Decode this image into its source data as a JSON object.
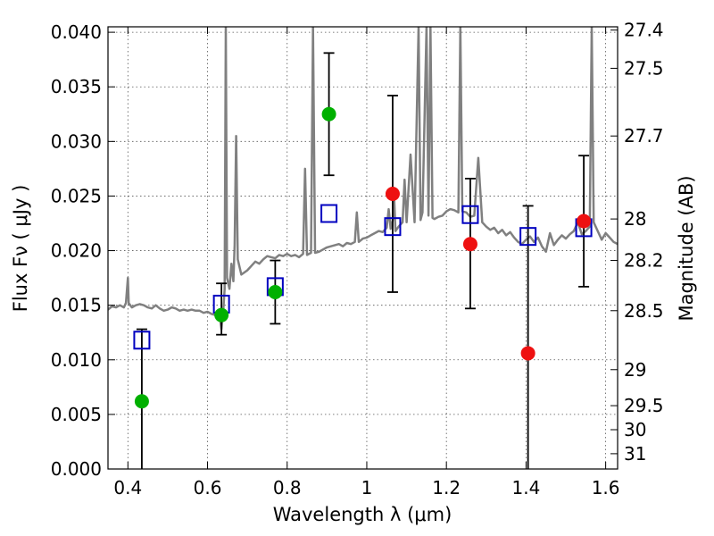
{
  "chart_data": {
    "type": "scatter",
    "title": "",
    "xlabel": "Wavelength  λ (μm)",
    "ylabel": "Flux  Fν  ( μJy )",
    "y2label": "Magnitude (AB)",
    "xlim": [
      0.35,
      1.63
    ],
    "ylim": [
      0.0,
      0.0405
    ],
    "grid": true,
    "x_ticks": [
      0.4,
      0.6,
      0.8,
      1.0,
      1.2,
      1.4,
      1.6
    ],
    "x_tick_labels": [
      "0.4",
      "0.6",
      "0.8",
      "1",
      "1.2",
      "1.4",
      "1.6"
    ],
    "y_ticks": [
      0.0,
      0.005,
      0.01,
      0.015,
      0.02,
      0.025,
      0.03,
      0.035,
      0.04
    ],
    "y_tick_labels": [
      "0.000",
      "0.005",
      "0.010",
      "0.015",
      "0.020",
      "0.025",
      "0.030",
      "0.035",
      "0.040"
    ],
    "y2_ticks": [
      {
        "label": "27.4",
        "flux": 0.0402
      },
      {
        "label": "27.5",
        "flux": 0.0367
      },
      {
        "label": "27.7",
        "flux": 0.0305
      },
      {
        "label": "28",
        "flux": 0.0229
      },
      {
        "label": "28.2",
        "flux": 0.0191
      },
      {
        "label": "28.5",
        "flux": 0.0145
      },
      {
        "label": "29",
        "flux": 0.0091
      },
      {
        "label": "29.5",
        "flux": 0.0058
      },
      {
        "label": "30",
        "flux": 0.0036
      },
      {
        "label": "31",
        "flux": 0.0014
      }
    ],
    "colors": {
      "spectrum": "#808080",
      "model_box": "#0000c0",
      "green_point": "#00b000",
      "red_point": "#ee1111",
      "error_bar": "#000000",
      "grid": "#555555"
    },
    "series": [
      {
        "marker": "circle",
        "color": "green",
        "points": [
          {
            "x": 0.435,
            "y": 0.0062,
            "yerr_low": 0.0062,
            "yerr_high": 0.0066
          },
          {
            "x": 0.635,
            "y": 0.0141,
            "yerr_low": 0.0018,
            "yerr_high": 0.0029
          },
          {
            "x": 0.77,
            "y": 0.0162,
            "yerr_low": 0.0029,
            "yerr_high": 0.0029
          },
          {
            "x": 0.905,
            "y": 0.0325,
            "yerr_low": 0.0056,
            "yerr_high": 0.0056
          }
        ]
      },
      {
        "marker": "circle",
        "color": "red",
        "points": [
          {
            "x": 1.065,
            "y": 0.0252,
            "yerr_low": 0.009,
            "yerr_high": 0.009
          },
          {
            "x": 1.26,
            "y": 0.0206,
            "yerr_low": 0.0059,
            "yerr_high": 0.006
          },
          {
            "x": 1.405,
            "y": 0.0106,
            "yerr_low": 0.0106,
            "yerr_high": 0.0135
          },
          {
            "x": 1.545,
            "y": 0.0227,
            "yerr_low": 0.006,
            "yerr_high": 0.006
          }
        ]
      },
      {
        "marker": "square",
        "color": "blue",
        "points": [
          {
            "x": 0.435,
            "y": 0.0118
          },
          {
            "x": 0.635,
            "y": 0.0151
          },
          {
            "x": 0.77,
            "y": 0.0167
          },
          {
            "x": 0.905,
            "y": 0.0234
          },
          {
            "x": 1.065,
            "y": 0.0222
          },
          {
            "x": 1.26,
            "y": 0.0233
          },
          {
            "x": 1.405,
            "y": 0.0213
          },
          {
            "x": 1.545,
            "y": 0.0221
          }
        ]
      },
      {
        "marker": "line",
        "color": "gray",
        "points": [
          [
            0.35,
            0.0146
          ],
          [
            0.36,
            0.0149
          ],
          [
            0.37,
            0.0148
          ],
          [
            0.38,
            0.015
          ],
          [
            0.39,
            0.0148
          ],
          [
            0.395,
            0.0152
          ],
          [
            0.4,
            0.0175
          ],
          [
            0.402,
            0.0152
          ],
          [
            0.41,
            0.0148
          ],
          [
            0.42,
            0.015
          ],
          [
            0.43,
            0.0151
          ],
          [
            0.44,
            0.015
          ],
          [
            0.45,
            0.0148
          ],
          [
            0.46,
            0.0147
          ],
          [
            0.47,
            0.015
          ],
          [
            0.48,
            0.0147
          ],
          [
            0.49,
            0.0145
          ],
          [
            0.5,
            0.0146
          ],
          [
            0.51,
            0.0148
          ],
          [
            0.52,
            0.0147
          ],
          [
            0.53,
            0.0145
          ],
          [
            0.54,
            0.0146
          ],
          [
            0.55,
            0.0145
          ],
          [
            0.56,
            0.0146
          ],
          [
            0.57,
            0.0145
          ],
          [
            0.58,
            0.0145
          ],
          [
            0.59,
            0.0143
          ],
          [
            0.6,
            0.0144
          ],
          [
            0.61,
            0.0142
          ],
          [
            0.62,
            0.0141
          ],
          [
            0.63,
            0.0142
          ],
          [
            0.635,
            0.0128
          ],
          [
            0.64,
            0.0148
          ],
          [
            0.643,
            0.0165
          ],
          [
            0.646,
            0.0405
          ],
          [
            0.649,
            0.0175
          ],
          [
            0.655,
            0.0165
          ],
          [
            0.66,
            0.0188
          ],
          [
            0.665,
            0.0172
          ],
          [
            0.668,
            0.0205
          ],
          [
            0.672,
            0.0305
          ],
          [
            0.676,
            0.0192
          ],
          [
            0.685,
            0.0178
          ],
          [
            0.7,
            0.0182
          ],
          [
            0.71,
            0.0186
          ],
          [
            0.72,
            0.019
          ],
          [
            0.73,
            0.0188
          ],
          [
            0.74,
            0.0192
          ],
          [
            0.75,
            0.0195
          ],
          [
            0.76,
            0.0194
          ],
          [
            0.77,
            0.0193
          ],
          [
            0.78,
            0.0196
          ],
          [
            0.79,
            0.0195
          ],
          [
            0.8,
            0.0197
          ],
          [
            0.81,
            0.0195
          ],
          [
            0.82,
            0.0196
          ],
          [
            0.83,
            0.0194
          ],
          [
            0.84,
            0.0197
          ],
          [
            0.845,
            0.0275
          ],
          [
            0.85,
            0.0196
          ],
          [
            0.86,
            0.0198
          ],
          [
            0.865,
            0.0405
          ],
          [
            0.87,
            0.0198
          ],
          [
            0.88,
            0.0199
          ],
          [
            0.89,
            0.0201
          ],
          [
            0.9,
            0.0203
          ],
          [
            0.91,
            0.0204
          ],
          [
            0.92,
            0.0205
          ],
          [
            0.93,
            0.0206
          ],
          [
            0.94,
            0.0204
          ],
          [
            0.95,
            0.0207
          ],
          [
            0.96,
            0.0206
          ],
          [
            0.97,
            0.0208
          ],
          [
            0.975,
            0.0235
          ],
          [
            0.98,
            0.0208
          ],
          [
            0.99,
            0.0211
          ],
          [
            1.0,
            0.0212
          ],
          [
            1.01,
            0.0214
          ],
          [
            1.02,
            0.0216
          ],
          [
            1.03,
            0.0218
          ],
          [
            1.04,
            0.0217
          ],
          [
            1.05,
            0.0221
          ],
          [
            1.055,
            0.0238
          ],
          [
            1.06,
            0.022
          ],
          [
            1.065,
            0.0228
          ],
          [
            1.068,
            0.0255
          ],
          [
            1.072,
            0.0218
          ],
          [
            1.08,
            0.0222
          ],
          [
            1.09,
            0.0226
          ],
          [
            1.095,
            0.0265
          ],
          [
            1.1,
            0.0226
          ],
          [
            1.11,
            0.0288
          ],
          [
            1.12,
            0.0226
          ],
          [
            1.13,
            0.0405
          ],
          [
            1.135,
            0.0228
          ],
          [
            1.14,
            0.0235
          ],
          [
            1.15,
            0.0405
          ],
          [
            1.155,
            0.0232
          ],
          [
            1.16,
            0.0405
          ],
          [
            1.165,
            0.023
          ],
          [
            1.17,
            0.0229
          ],
          [
            1.18,
            0.0231
          ],
          [
            1.19,
            0.0232
          ],
          [
            1.2,
            0.0236
          ],
          [
            1.21,
            0.0238
          ],
          [
            1.22,
            0.0237
          ],
          [
            1.23,
            0.0235
          ],
          [
            1.235,
            0.0405
          ],
          [
            1.24,
            0.0236
          ],
          [
            1.25,
            0.0235
          ],
          [
            1.26,
            0.0231
          ],
          [
            1.27,
            0.0232
          ],
          [
            1.28,
            0.0285
          ],
          [
            1.29,
            0.0226
          ],
          [
            1.3,
            0.0222
          ],
          [
            1.31,
            0.0219
          ],
          [
            1.32,
            0.0221
          ],
          [
            1.33,
            0.0216
          ],
          [
            1.34,
            0.0219
          ],
          [
            1.35,
            0.0214
          ],
          [
            1.36,
            0.0217
          ],
          [
            1.37,
            0.0212
          ],
          [
            1.38,
            0.0208
          ],
          [
            1.39,
            0.0206
          ],
          [
            1.4,
            0.021
          ],
          [
            1.41,
            0.0213
          ],
          [
            1.42,
            0.0208
          ],
          [
            1.43,
            0.0212
          ],
          [
            1.44,
            0.0204
          ],
          [
            1.45,
            0.0199
          ],
          [
            1.46,
            0.0216
          ],
          [
            1.47,
            0.0205
          ],
          [
            1.48,
            0.021
          ],
          [
            1.49,
            0.0214
          ],
          [
            1.5,
            0.0211
          ],
          [
            1.51,
            0.0215
          ],
          [
            1.52,
            0.0218
          ],
          [
            1.53,
            0.0226
          ],
          [
            1.54,
            0.0215
          ],
          [
            1.55,
            0.0218
          ],
          [
            1.56,
            0.0222
          ],
          [
            1.565,
            0.0405
          ],
          [
            1.57,
            0.0226
          ],
          [
            1.58,
            0.0218
          ],
          [
            1.59,
            0.021
          ],
          [
            1.6,
            0.0216
          ],
          [
            1.61,
            0.0212
          ],
          [
            1.62,
            0.0208
          ],
          [
            1.63,
            0.0206
          ]
        ]
      }
    ]
  }
}
